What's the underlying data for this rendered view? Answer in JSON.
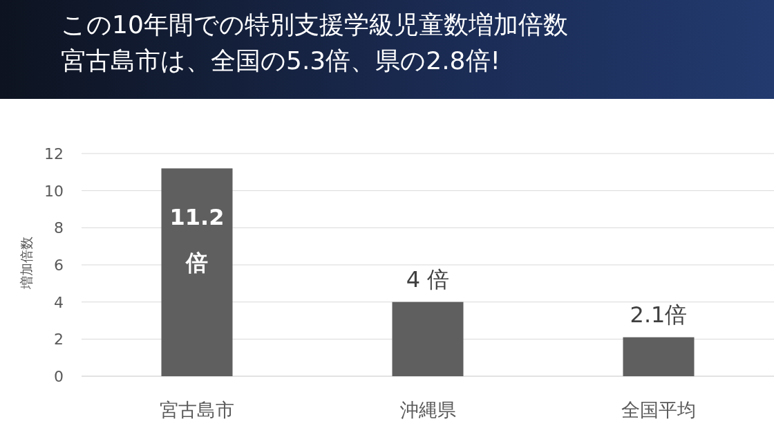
{
  "chart_data": {
    "type": "bar",
    "title": "この10年間での特別支援学級児童数増加倍数",
    "subtitle": "宮古島市は、全国の5.3倍、県の2.8倍!",
    "ylabel": "増加倍数",
    "categories": [
      "宮古島市",
      "沖縄県",
      "全国平均"
    ],
    "values": [
      11.2,
      4,
      2.1
    ],
    "value_labels": [
      "11.2\n倍",
      "4 倍",
      "2.1倍"
    ],
    "color": "#5f5f5f",
    "ylim": [
      0,
      12
    ],
    "yticks": [
      0,
      2,
      4,
      6,
      8,
      10,
      12
    ],
    "grid": "y"
  }
}
